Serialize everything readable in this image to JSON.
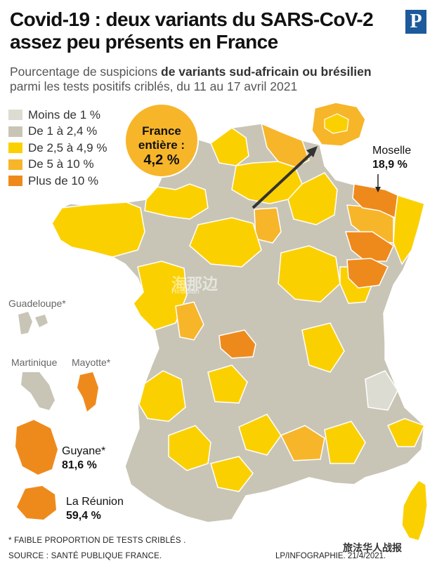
{
  "title": {
    "line1": "Covid-19 : deux variants du SARS-CoV-2",
    "line2": "assez peu présents en France"
  },
  "logo_letter": "P",
  "subtitle": {
    "prefix": "Pourcentage de suspicions ",
    "emphasis": "de variants sud-africain ou brésilien",
    "line2": "parmi les tests positifs criblés, du 11 au 17 avril 2021"
  },
  "legend": [
    {
      "label": "Moins de 1 %",
      "color": "#dcdcd2"
    },
    {
      "label": "De 1 à 2,4 %",
      "color": "#c8c5b6"
    },
    {
      "label": "De 2,5 à 4,9 %",
      "color": "#fbd000"
    },
    {
      "label": "De 5 à 10 %",
      "color": "#f7b52a"
    },
    {
      "label": "Plus de 10 %",
      "color": "#ee8a1c"
    }
  ],
  "france_total": {
    "line1": "France",
    "line2": "entière :",
    "value": "4,2 %"
  },
  "moselle": {
    "name": "Moselle",
    "value": "18,9 %"
  },
  "overseas": {
    "guadeloupe": "Guadeloupe*",
    "martinique": "Martinique",
    "mayotte": "Mayotte*",
    "guyane": {
      "name": "Guyane*",
      "value": "81,6 %"
    },
    "reunion": {
      "name": "La Réunion",
      "value": "59,4 %"
    }
  },
  "footnote": "* FAIBLE PROPORTION DE TESTS CRIBLÉS .",
  "source": "SOURCE : SANTÉ PUBLIQUE FRANCE.",
  "credit": "LP/INFOGRAPHIE. 21/4/2021.",
  "wechat": "旅法华人战报",
  "watermark": {
    "text": "海那边",
    "sub": "Hinabian"
  },
  "colors": {
    "moins1": "#dcdcd2",
    "de1": "#c8c5b6",
    "de25": "#fbd000",
    "de5": "#f7b52a",
    "plus10": "#ee8a1c",
    "outline": "#ffffff"
  }
}
